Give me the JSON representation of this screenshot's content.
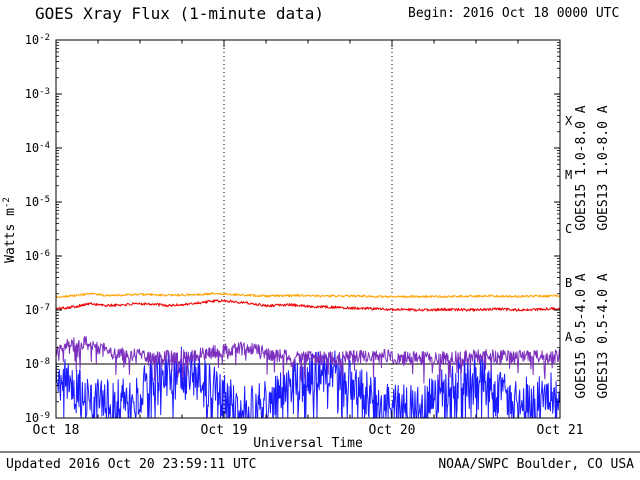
{
  "header": {
    "begin": "Begin:  2016 Oct 18 0000 UTC"
  },
  "footer": {
    "updated": "Updated 2016 Oct 20 23:59:11 UTC",
    "credit": "NOAA/SWPC Boulder, CO USA"
  },
  "chart_data": {
    "type": "line",
    "title": "GOES Xray Flux (1-minute data)",
    "xlabel": "Universal Time",
    "ylabel_base": "Watts m",
    "ylabel_exp": "-2",
    "x_axis": {
      "tick_labels": [
        "Oct 18",
        "Oct 19",
        "Oct 20",
        "Oct 21"
      ],
      "hours_range": [
        0,
        72
      ],
      "minor_tick_hours": 6
    },
    "y_axis": {
      "log_range": [
        -9,
        -2
      ],
      "tick_exponents": [
        -2,
        -3,
        -4,
        -5,
        -6,
        -7,
        -8,
        -9
      ],
      "solid_line_log": -8
    },
    "flare_classes": [
      {
        "label": "X",
        "log_mid": -3.5
      },
      {
        "label": "M",
        "log_mid": -4.5
      },
      {
        "label": "C",
        "log_mid": -5.5
      },
      {
        "label": "B",
        "log_mid": -6.5
      },
      {
        "label": "A",
        "log_mid": -7.5
      }
    ],
    "series": [
      {
        "name": "GOES15 1.0-8.0 A",
        "color": "#ee0000",
        "seed": 101,
        "noise": 0.025,
        "dip_chance": 0,
        "dip_depth": 0,
        "anchors_t": [
          0,
          3,
          5,
          7,
          10,
          13,
          16,
          19,
          22,
          24,
          26,
          28,
          30,
          33,
          36,
          40,
          44,
          48,
          52,
          56,
          60,
          63,
          66,
          69,
          72
        ],
        "anchors_log": [
          -6.98,
          -6.93,
          -6.88,
          -6.92,
          -6.9,
          -6.88,
          -6.92,
          -6.89,
          -6.84,
          -6.83,
          -6.85,
          -6.88,
          -6.92,
          -6.9,
          -6.93,
          -6.95,
          -6.97,
          -6.99,
          -7.0,
          -6.99,
          -7.0,
          -6.98,
          -7.0,
          -6.99,
          -6.97
        ]
      },
      {
        "name": "GOES13 1.0-8.0 A",
        "color": "#ffa200",
        "seed": 202,
        "noise": 0.02,
        "dip_chance": 0,
        "dip_depth": 0,
        "anchors_t": [
          0,
          3,
          5,
          7,
          10,
          13,
          16,
          19,
          22,
          24,
          26,
          28,
          30,
          34,
          38,
          42,
          46,
          50,
          54,
          58,
          62,
          66,
          69,
          72
        ],
        "anchors_log": [
          -6.76,
          -6.73,
          -6.7,
          -6.73,
          -6.72,
          -6.71,
          -6.73,
          -6.72,
          -6.7,
          -6.7,
          -6.72,
          -6.73,
          -6.74,
          -6.73,
          -6.74,
          -6.74,
          -6.75,
          -6.75,
          -6.75,
          -6.75,
          -6.74,
          -6.75,
          -6.74,
          -6.74
        ]
      },
      {
        "name": "GOES15 0.5-4.0 A",
        "color": "#1a1aff",
        "seed": 303,
        "noise": 0.42,
        "dip_chance": 0.22,
        "dip_depth": 1.0,
        "anchors_t": [
          0,
          3,
          6,
          9,
          12,
          15,
          18,
          21,
          24,
          27,
          30,
          33,
          36,
          39,
          42,
          45,
          48,
          51,
          54,
          57,
          60,
          63,
          66,
          69,
          72
        ],
        "anchors_log": [
          -8.2,
          -8.5,
          -8.7,
          -8.7,
          -8.5,
          -8.2,
          -8.1,
          -8.3,
          -8.6,
          -8.8,
          -8.7,
          -8.4,
          -8.2,
          -8.1,
          -8.3,
          -8.6,
          -8.8,
          -8.8,
          -8.6,
          -8.3,
          -8.2,
          -8.4,
          -8.7,
          -8.6,
          -8.5
        ]
      },
      {
        "name": "GOES13 0.5-4.0 A",
        "color": "#7b2fbe",
        "seed": 404,
        "noise": 0.13,
        "dip_chance": 0.12,
        "dip_depth": 0.4,
        "anchors_t": [
          0,
          2,
          4,
          6,
          8,
          10,
          12,
          16,
          20,
          24,
          27,
          30,
          34,
          38,
          42,
          46,
          50,
          54,
          58,
          62,
          66,
          70,
          72
        ],
        "anchors_log": [
          -7.75,
          -7.65,
          -7.6,
          -7.7,
          -7.78,
          -7.82,
          -7.85,
          -7.88,
          -7.85,
          -7.75,
          -7.7,
          -7.8,
          -7.88,
          -7.9,
          -7.88,
          -7.85,
          -7.88,
          -7.9,
          -7.88,
          -7.85,
          -7.88,
          -7.85,
          -7.85
        ]
      }
    ]
  }
}
